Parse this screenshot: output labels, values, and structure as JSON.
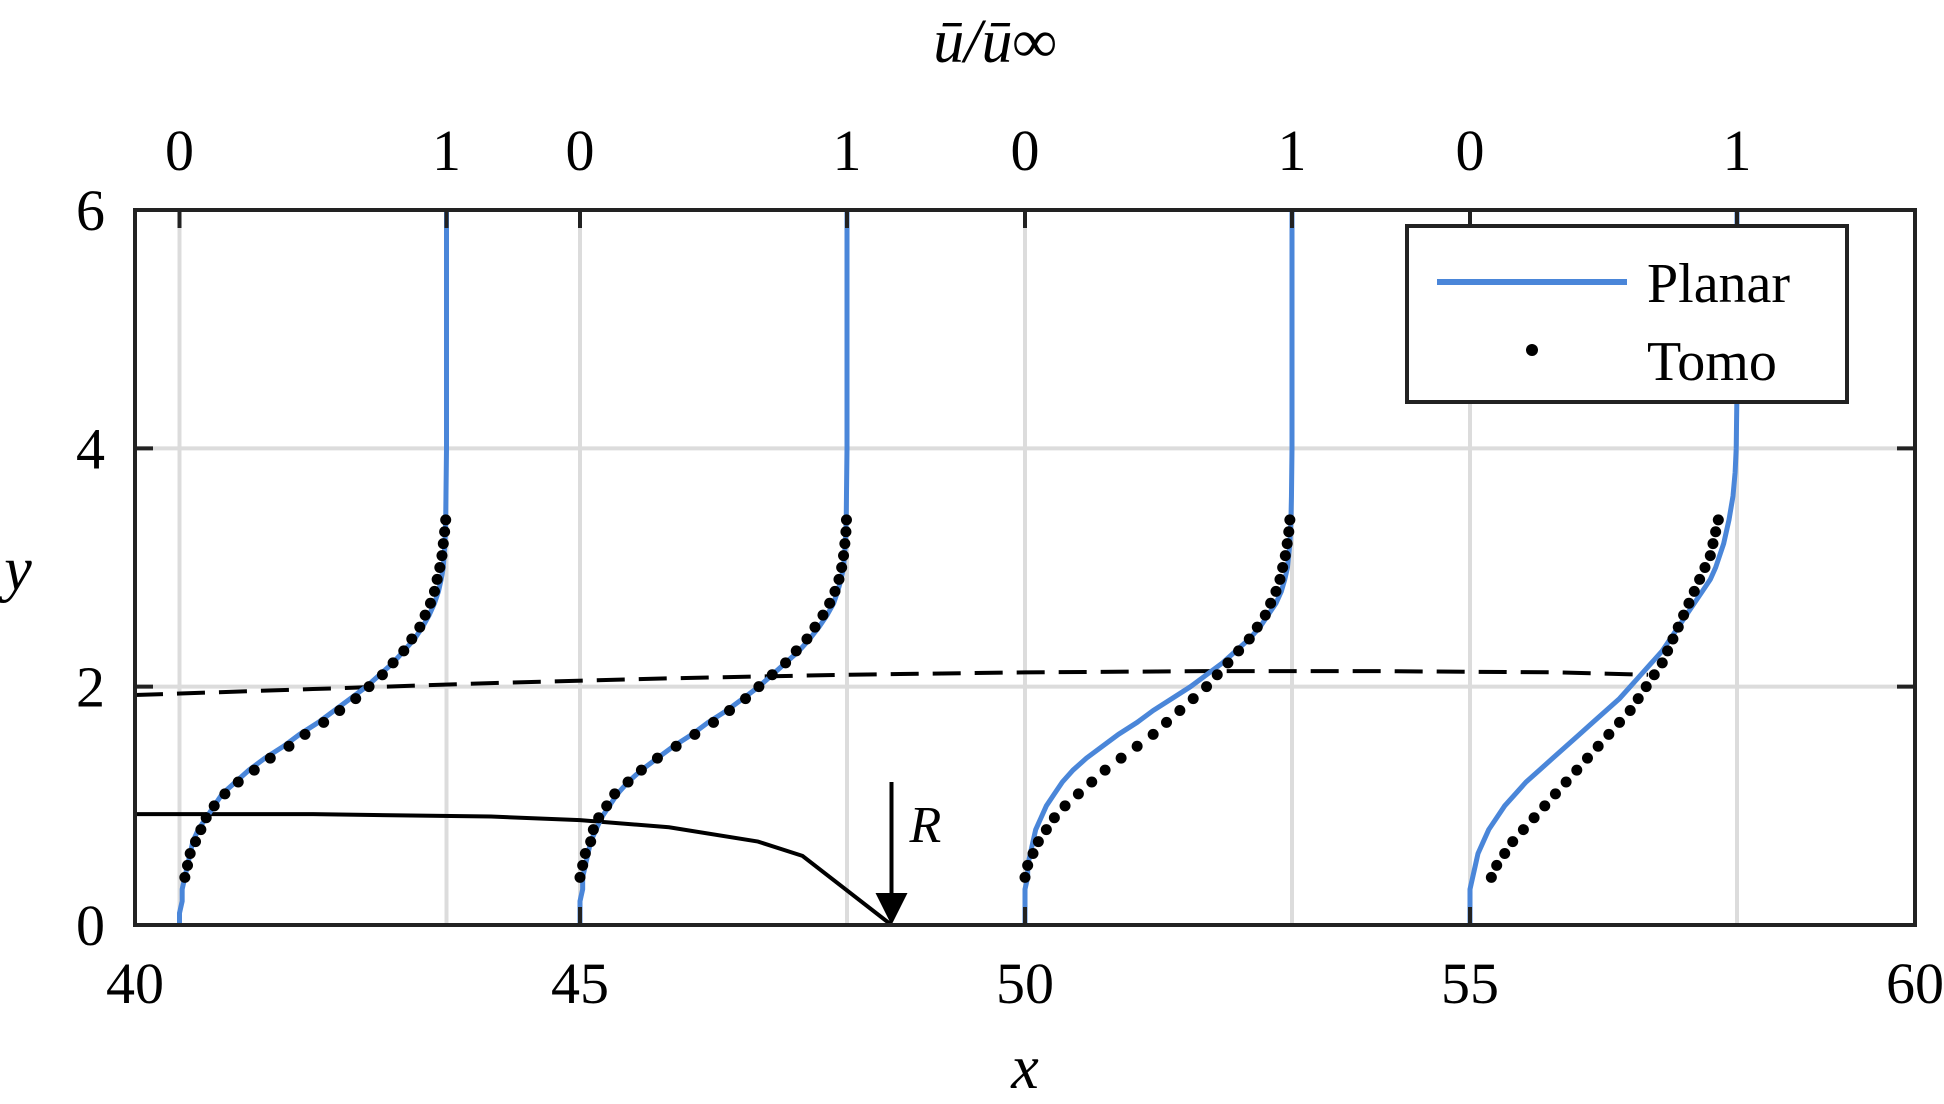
{
  "chart_data": {
    "type": "line",
    "xlabel": "x",
    "ylabel": "y",
    "top_label": "ū/ū∞",
    "xlim": [
      40,
      60
    ],
    "ylim": [
      0,
      6
    ],
    "xticks": [
      40,
      45,
      50,
      55,
      60
    ],
    "yticks": [
      0,
      2,
      4,
      6
    ],
    "xtick_labels": [
      "40",
      "45",
      "50",
      "55",
      "60"
    ],
    "ytick_labels": [
      "0",
      "2",
      "4",
      "6"
    ],
    "grid": true,
    "legend_position": "top-right",
    "profile_scale": 3.0,
    "profiles": [
      {
        "x0": 40.5,
        "top_ticks": [
          "0",
          "1"
        ],
        "planar": {
          "y": [
            0,
            0.1,
            0.2,
            0.3,
            0.4,
            0.5,
            0.6,
            0.7,
            0.8,
            0.9,
            1.0,
            1.1,
            1.2,
            1.3,
            1.4,
            1.5,
            1.6,
            1.7,
            1.8,
            1.9,
            2.0,
            2.1,
            2.2,
            2.3,
            2.4,
            2.5,
            2.6,
            2.7,
            2.8,
            2.9,
            3.0,
            3.2,
            3.4,
            3.6,
            3.8,
            4.0,
            4.5,
            5.0,
            5.5,
            6.0
          ],
          "u": [
            0.0,
            0.0,
            0.01,
            0.01,
            0.02,
            0.03,
            0.04,
            0.05,
            0.07,
            0.1,
            0.13,
            0.16,
            0.21,
            0.26,
            0.32,
            0.39,
            0.45,
            0.52,
            0.58,
            0.64,
            0.7,
            0.75,
            0.8,
            0.84,
            0.88,
            0.91,
            0.935,
            0.955,
            0.97,
            0.98,
            0.988,
            0.994,
            0.997,
            0.998,
            0.999,
            1.0,
            1.0,
            1.0,
            1.0,
            1.0
          ]
        },
        "tomo": {
          "y": [
            0.4,
            0.5,
            0.6,
            0.7,
            0.8,
            0.9,
            1.0,
            1.1,
            1.2,
            1.3,
            1.4,
            1.5,
            1.6,
            1.7,
            1.8,
            1.9,
            2.0,
            2.1,
            2.2,
            2.3,
            2.4,
            2.5,
            2.6,
            2.7,
            2.8,
            2.9,
            3.0,
            3.1,
            3.2,
            3.3,
            3.4
          ],
          "u": [
            0.02,
            0.03,
            0.04,
            0.06,
            0.08,
            0.1,
            0.13,
            0.17,
            0.22,
            0.28,
            0.34,
            0.41,
            0.47,
            0.54,
            0.6,
            0.66,
            0.71,
            0.76,
            0.8,
            0.84,
            0.87,
            0.9,
            0.92,
            0.94,
            0.955,
            0.965,
            0.975,
            0.983,
            0.988,
            0.993,
            0.997
          ]
        }
      },
      {
        "x0": 45.0,
        "top_ticks": [
          "0",
          "1"
        ],
        "planar": {
          "y": [
            0,
            0.1,
            0.2,
            0.3,
            0.4,
            0.5,
            0.6,
            0.7,
            0.8,
            0.9,
            1.0,
            1.1,
            1.2,
            1.3,
            1.4,
            1.5,
            1.6,
            1.7,
            1.8,
            1.9,
            2.0,
            2.1,
            2.2,
            2.3,
            2.4,
            2.5,
            2.6,
            2.7,
            2.8,
            2.9,
            3.0,
            3.2,
            3.4,
            3.6,
            3.8,
            4.0,
            4.5,
            5.0,
            5.5,
            6.0
          ],
          "u": [
            0.0,
            0.0,
            0.0,
            0.01,
            0.01,
            0.02,
            0.03,
            0.04,
            0.06,
            0.08,
            0.11,
            0.14,
            0.18,
            0.23,
            0.29,
            0.35,
            0.42,
            0.48,
            0.55,
            0.61,
            0.67,
            0.72,
            0.77,
            0.82,
            0.86,
            0.895,
            0.925,
            0.95,
            0.965,
            0.978,
            0.987,
            0.994,
            0.997,
            0.998,
            0.999,
            1.0,
            1.0,
            1.0,
            1.0,
            1.0
          ]
        },
        "tomo": {
          "y": [
            0.4,
            0.5,
            0.6,
            0.7,
            0.8,
            0.9,
            1.0,
            1.1,
            1.2,
            1.3,
            1.4,
            1.5,
            1.6,
            1.7,
            1.8,
            1.9,
            2.0,
            2.1,
            2.2,
            2.3,
            2.4,
            2.5,
            2.6,
            2.7,
            2.8,
            2.9,
            3.0,
            3.1,
            3.2,
            3.3,
            3.4
          ],
          "u": [
            0.0,
            0.01,
            0.02,
            0.04,
            0.05,
            0.07,
            0.1,
            0.13,
            0.18,
            0.23,
            0.29,
            0.36,
            0.43,
            0.5,
            0.56,
            0.62,
            0.67,
            0.72,
            0.77,
            0.81,
            0.85,
            0.88,
            0.91,
            0.935,
            0.955,
            0.97,
            0.98,
            0.987,
            0.992,
            0.996,
            0.998
          ]
        }
      },
      {
        "x0": 50.0,
        "top_ticks": [
          "0",
          "1"
        ],
        "planar": {
          "y": [
            0,
            0.1,
            0.2,
            0.3,
            0.4,
            0.5,
            0.6,
            0.7,
            0.8,
            0.9,
            1.0,
            1.1,
            1.2,
            1.3,
            1.4,
            1.5,
            1.6,
            1.7,
            1.8,
            1.9,
            2.0,
            2.1,
            2.2,
            2.3,
            2.4,
            2.5,
            2.6,
            2.7,
            2.8,
            2.9,
            3.0,
            3.2,
            3.4,
            3.6,
            3.8,
            4.0,
            4.5,
            5.0,
            5.5,
            6.0
          ],
          "u": [
            0.0,
            0.0,
            0.0,
            0.0,
            0.01,
            0.01,
            0.02,
            0.03,
            0.04,
            0.06,
            0.08,
            0.11,
            0.14,
            0.18,
            0.23,
            0.29,
            0.35,
            0.42,
            0.48,
            0.55,
            0.62,
            0.68,
            0.74,
            0.79,
            0.84,
            0.88,
            0.91,
            0.94,
            0.96,
            0.973,
            0.983,
            0.992,
            0.996,
            0.998,
            0.999,
            1.0,
            1.0,
            1.0,
            1.0,
            1.0
          ]
        },
        "tomo": {
          "y": [
            0.4,
            0.5,
            0.6,
            0.7,
            0.8,
            0.9,
            1.0,
            1.1,
            1.2,
            1.3,
            1.4,
            1.5,
            1.6,
            1.7,
            1.8,
            1.9,
            2.0,
            2.1,
            2.2,
            2.3,
            2.4,
            2.5,
            2.6,
            2.7,
            2.8,
            2.9,
            3.0,
            3.1,
            3.2,
            3.3,
            3.4
          ],
          "u": [
            0.0,
            0.01,
            0.03,
            0.05,
            0.08,
            0.11,
            0.15,
            0.2,
            0.25,
            0.3,
            0.36,
            0.42,
            0.48,
            0.53,
            0.58,
            0.63,
            0.68,
            0.72,
            0.76,
            0.8,
            0.84,
            0.87,
            0.9,
            0.92,
            0.94,
            0.955,
            0.965,
            0.975,
            0.982,
            0.988,
            0.992
          ]
        }
      },
      {
        "x0": 55.0,
        "top_ticks": [
          "0",
          "1"
        ],
        "planar": {
          "y": [
            0,
            0.1,
            0.2,
            0.3,
            0.4,
            0.5,
            0.6,
            0.7,
            0.8,
            0.9,
            1.0,
            1.1,
            1.2,
            1.3,
            1.4,
            1.5,
            1.6,
            1.7,
            1.8,
            1.9,
            2.0,
            2.1,
            2.2,
            2.3,
            2.4,
            2.5,
            2.6,
            2.7,
            2.8,
            2.9,
            3.0,
            3.2,
            3.4,
            3.6,
            3.8,
            4.0,
            4.5,
            5.0,
            5.5,
            6.0
          ],
          "u": [
            0.0,
            0.0,
            0.0,
            0.0,
            0.01,
            0.02,
            0.03,
            0.05,
            0.07,
            0.1,
            0.13,
            0.17,
            0.21,
            0.26,
            0.31,
            0.36,
            0.41,
            0.46,
            0.51,
            0.56,
            0.6,
            0.64,
            0.68,
            0.72,
            0.75,
            0.78,
            0.81,
            0.84,
            0.87,
            0.9,
            0.92,
            0.95,
            0.97,
            0.985,
            0.993,
            0.997,
            1.0,
            1.0,
            1.0,
            1.0
          ]
        },
        "tomo": {
          "y": [
            0.4,
            0.5,
            0.6,
            0.7,
            0.8,
            0.9,
            1.0,
            1.1,
            1.2,
            1.3,
            1.4,
            1.5,
            1.6,
            1.7,
            1.8,
            1.9,
            2.0,
            2.1,
            2.2,
            2.3,
            2.4,
            2.5,
            2.6,
            2.7,
            2.8,
            2.9,
            3.0,
            3.1,
            3.2,
            3.3,
            3.4
          ],
          "u": [
            0.08,
            0.1,
            0.13,
            0.16,
            0.2,
            0.24,
            0.28,
            0.32,
            0.36,
            0.4,
            0.44,
            0.48,
            0.52,
            0.56,
            0.6,
            0.63,
            0.66,
            0.69,
            0.72,
            0.74,
            0.76,
            0.78,
            0.8,
            0.82,
            0.84,
            0.86,
            0.88,
            0.9,
            0.91,
            0.92,
            0.93
          ]
        }
      }
    ],
    "dashed_line": {
      "x": [
        40,
        42,
        44,
        46,
        48,
        50,
        52,
        54,
        56,
        57
      ],
      "y": [
        1.93,
        1.98,
        2.03,
        2.07,
        2.1,
        2.12,
        2.13,
        2.13,
        2.12,
        2.1
      ]
    },
    "solid_line": {
      "x": [
        40,
        42,
        44,
        45,
        46,
        47,
        47.5,
        48.5
      ],
      "y": [
        0.93,
        0.93,
        0.91,
        0.88,
        0.82,
        0.7,
        0.58,
        0.0
      ]
    },
    "arrow": {
      "x": 48.5,
      "y_from": 1.2,
      "y_to": 0.0,
      "label": "R"
    },
    "legend": [
      {
        "label": "Planar",
        "color": "#4a86d9",
        "style": "line"
      },
      {
        "label": "Tomo",
        "color": "#000000",
        "style": "dots"
      }
    ],
    "colors": {
      "planar": "#4a86d9",
      "tomo": "#000000",
      "grid": "#dcdcdc",
      "axes": "#222222"
    }
  }
}
